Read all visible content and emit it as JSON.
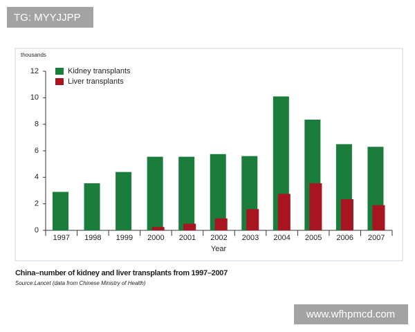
{
  "chart_data": {
    "type": "bar",
    "y_unit_label": "thousands",
    "xlabel": "Year",
    "caption": "China–number of kidney and liver transplants from 1997–2007",
    "source": "Source:Lancet (data from Chinese Ministry of Health)",
    "categories": [
      "1997",
      "1998",
      "1999",
      "2000",
      "2001",
      "2002",
      "2003",
      "2004",
      "2005",
      "2006",
      "2007"
    ],
    "series": [
      {
        "name": "Kidney transplants",
        "color": "#1b7d3c",
        "values": [
          2.9,
          3.55,
          4.4,
          5.55,
          5.55,
          5.75,
          5.6,
          10.1,
          8.35,
          6.5,
          6.3
        ]
      },
      {
        "name": "Liver transplants",
        "color": "#a8141f",
        "values": [
          null,
          null,
          null,
          0.25,
          0.5,
          0.9,
          1.6,
          2.75,
          3.55,
          2.35,
          1.9
        ]
      }
    ],
    "ylim": [
      0,
      12
    ],
    "yticks": [
      0,
      2,
      4,
      6,
      8,
      10,
      12
    ],
    "grid": false
  },
  "watermarks": {
    "top_left": "TG: MYYJJPP",
    "bottom_right": "www.wfhpmcd.com"
  }
}
